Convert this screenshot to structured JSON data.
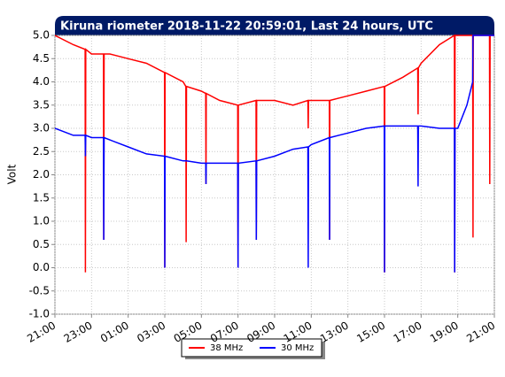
{
  "chart_data": {
    "type": "line",
    "title": "Kiruna riometer 2018-11-22 20:59:01, Last 24 hours, UTC",
    "y_label": "Volt",
    "x": [
      "21:00",
      "22:00",
      "22:39",
      "22:40",
      "22:41",
      "23:00",
      "23:39",
      "23:40",
      "23:41",
      "00:00",
      "01:00",
      "02:00",
      "02:59",
      "03:00",
      "03:01",
      "04:00",
      "04:09",
      "04:10",
      "04:11",
      "05:00",
      "05:14",
      "05:15",
      "05:16",
      "06:00",
      "06:59",
      "07:00",
      "07:01",
      "07:59",
      "08:00",
      "08:01",
      "09:00",
      "10:00",
      "10:49",
      "10:50",
      "10:51",
      "11:00",
      "11:59",
      "12:00",
      "12:01",
      "13:00",
      "14:00",
      "14:59",
      "15:00",
      "15:01",
      "16:00",
      "16:49",
      "16:50",
      "16:51",
      "17:00",
      "18:00",
      "18:49",
      "18:50",
      "18:51",
      "19:00",
      "19:30",
      "19:49",
      "19:50",
      "19:51",
      "20:00",
      "20:44",
      "20:45",
      "20:46",
      "21:00"
    ],
    "series": [
      {
        "name": "38 MHz",
        "color": "#ff0000",
        "values": [
          5.0,
          4.8,
          4.7,
          -0.1,
          4.7,
          4.6,
          4.6,
          0.6,
          4.6,
          4.6,
          4.5,
          4.4,
          4.2,
          0.0,
          4.2,
          4.0,
          3.9,
          0.55,
          3.9,
          3.8,
          3.75,
          1.8,
          3.75,
          3.6,
          3.5,
          0.0,
          3.5,
          3.6,
          0.6,
          3.6,
          3.6,
          3.5,
          3.6,
          3.0,
          3.6,
          3.6,
          3.6,
          0.6,
          3.6,
          3.7,
          3.8,
          3.9,
          -0.1,
          3.9,
          4.1,
          4.3,
          3.3,
          4.3,
          4.4,
          4.8,
          5.0,
          -0.1,
          5.0,
          5.0,
          5.0,
          5.0,
          0.65,
          5.0,
          5.0,
          5.0,
          1.8,
          5.0,
          5.0
        ]
      },
      {
        "name": "30 MHz",
        "color": "#0000ff",
        "values": [
          3.0,
          2.85,
          2.85,
          2.4,
          2.85,
          2.8,
          2.8,
          0.6,
          2.8,
          2.75,
          2.6,
          2.45,
          2.4,
          0.0,
          2.4,
          2.3,
          2.3,
          2.3,
          2.3,
          2.25,
          2.25,
          1.8,
          2.25,
          2.25,
          2.25,
          0.0,
          2.25,
          2.3,
          0.6,
          2.3,
          2.4,
          2.55,
          2.6,
          0.0,
          2.6,
          2.65,
          2.8,
          0.6,
          2.8,
          2.9,
          3.0,
          3.05,
          -0.1,
          3.05,
          3.05,
          3.05,
          1.75,
          3.05,
          3.05,
          3.0,
          3.0,
          -0.1,
          3.0,
          3.0,
          3.5,
          4.0,
          5.0,
          5.0,
          5.0,
          5.0,
          5.0,
          5.0,
          5.0
        ]
      }
    ],
    "xticks": [
      "21:00",
      "23:00",
      "01:00",
      "03:00",
      "05:00",
      "07:00",
      "09:00",
      "11:00",
      "13:00",
      "15:00",
      "17:00",
      "19:00",
      "21:00"
    ],
    "ylim": [
      -1,
      5
    ],
    "yticks": [
      {
        "value": -1,
        "label": "-1.0"
      },
      -0.5,
      {
        "value": 0,
        "label": "0.0"
      },
      0.5,
      {
        "value": 1,
        "label": "1.0"
      },
      1.5,
      {
        "value": 2,
        "label": "2.0"
      },
      2.5,
      {
        "value": 3,
        "label": "3.0"
      },
      3.5,
      {
        "value": 4,
        "label": "4.0"
      },
      4.5,
      {
        "value": 5,
        "label": "5.0"
      }
    ],
    "grid": true
  }
}
